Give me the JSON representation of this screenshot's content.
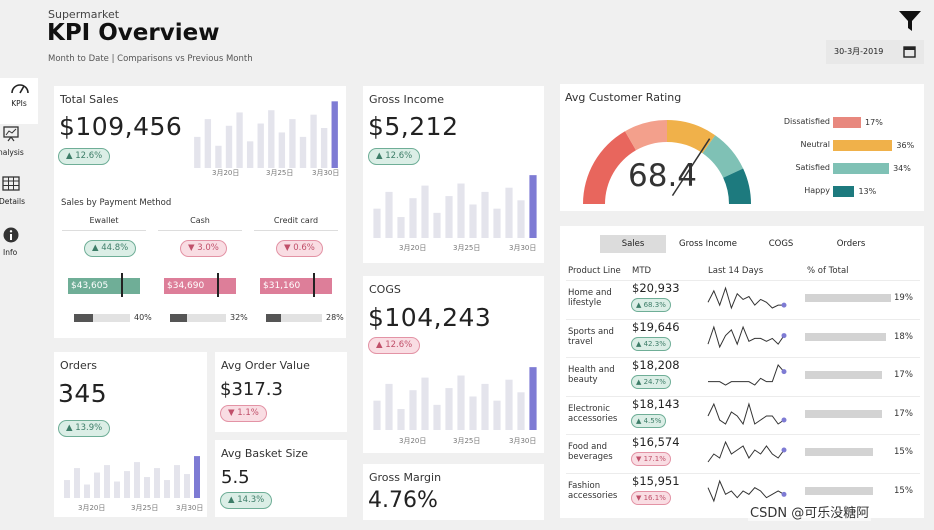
{
  "header": {
    "subtitle_top": "Supermarket",
    "title": "KPI Overview",
    "caption": "Month to Date | Comparisons vs Previous Month",
    "date": "30-3月-2019"
  },
  "nav": {
    "kpis": "KPIs",
    "analysis": "nalysis",
    "details": "Details",
    "info": "Info"
  },
  "colors": {
    "accent": "#7e7bd4",
    "bar": "#e4e4ec",
    "up": "#6fae97",
    "down": "#e393a5"
  },
  "total_sales": {
    "label": "Total Sales",
    "value": "$109,456",
    "change": "▲ 12.6%",
    "ticks": [
      "3月20日",
      "3月25日",
      "3月30日"
    ],
    "bars": [
      14,
      22,
      10,
      19,
      25,
      12,
      20,
      26,
      16,
      22,
      14,
      24,
      18,
      30
    ]
  },
  "payment": {
    "label": "Sales by Payment Method",
    "methods": [
      {
        "name": "Ewallet",
        "change": "▲ 44.8%",
        "dir": "up",
        "value": "$43,605",
        "share": "40%",
        "share_num": 40
      },
      {
        "name": "Cash",
        "change": "▼ 3.0%",
        "dir": "down",
        "value": "$34,690",
        "share": "32%",
        "share_num": 32
      },
      {
        "name": "Credit card",
        "change": "▼ 0.6%",
        "dir": "down",
        "value": "$31,160",
        "share": "28%",
        "share_num": 28
      }
    ]
  },
  "gross_income": {
    "label": "Gross Income",
    "value": "$5,212",
    "change": "▲ 12.6%",
    "ticks": [
      "3月20日",
      "3月25日",
      "3月30日"
    ],
    "bars": [
      14,
      22,
      10,
      19,
      25,
      12,
      20,
      26,
      16,
      22,
      14,
      24,
      18,
      30
    ]
  },
  "cogs": {
    "label": "COGS",
    "value": "$104,243",
    "change": "▲ 12.6%",
    "ticks": [
      "3月20日",
      "3月25日",
      "3月30日"
    ],
    "bars": [
      14,
      22,
      10,
      19,
      25,
      12,
      20,
      26,
      16,
      22,
      14,
      24,
      18,
      30
    ]
  },
  "orders": {
    "label": "Orders",
    "value": "345",
    "change": "▲ 13.9%",
    "ticks": [
      "3月20日",
      "3月25日",
      "3月30日"
    ],
    "bars": [
      12,
      20,
      9,
      17,
      22,
      11,
      18,
      24,
      14,
      20,
      12,
      22,
      16,
      28
    ]
  },
  "avg_order": {
    "label": "Avg Order Value",
    "value": "$317.3",
    "change": "▼ 1.1%"
  },
  "avg_basket": {
    "label": "Avg Basket Size",
    "value": "5.5",
    "change": "▲ 14.3%"
  },
  "gross_margin": {
    "label": "Gross Margin",
    "value": "4.76%"
  },
  "rating": {
    "label": "Avg Customer Rating",
    "value": "68.4",
    "value_num": 68.4,
    "legend": [
      {
        "name": "Dissatisfied",
        "pct": "17%",
        "num": 17,
        "color": "#e8887e"
      },
      {
        "name": "Neutral",
        "pct": "36%",
        "num": 36,
        "color": "#f0b14a"
      },
      {
        "name": "Satisfied",
        "pct": "34%",
        "num": 34,
        "color": "#7fc1b5"
      },
      {
        "name": "Happy",
        "pct": "13%",
        "num": 13,
        "color": "#1d7a7e"
      }
    ]
  },
  "product_table": {
    "tabs": [
      "Sales",
      "Gross Income",
      "COGS",
      "Orders"
    ],
    "headers": [
      "Product Line",
      "MTD",
      "Last 14 Days",
      "% of Total"
    ],
    "rows": [
      {
        "name": "Home and lifestyle",
        "mtd": "$20,933",
        "change": "▲ 68.3%",
        "dir": "up",
        "pct": "19%",
        "pct_num": 19,
        "spark": [
          4,
          8,
          3,
          9,
          2,
          7,
          5,
          6,
          3,
          5,
          4,
          2,
          3,
          3
        ]
      },
      {
        "name": "Sports and travel",
        "mtd": "$19,646",
        "change": "▲ 42.3%",
        "dir": "up",
        "pct": "18%",
        "pct_num": 18,
        "spark": [
          3,
          9,
          2,
          6,
          8,
          3,
          9,
          4,
          5,
          5,
          4,
          5,
          3,
          6
        ]
      },
      {
        "name": "Health and beauty",
        "mtd": "$18,208",
        "change": "▲ 24.7%",
        "dir": "up",
        "pct": "17%",
        "pct_num": 17,
        "spark": [
          3,
          3,
          3,
          2,
          3,
          3,
          3,
          3,
          2,
          4,
          3,
          3,
          8,
          6
        ]
      },
      {
        "name": "Electronic accessories",
        "mtd": "$18,143",
        "change": "▲ 4.5%",
        "dir": "up",
        "pct": "17%",
        "pct_num": 17,
        "spark": [
          5,
          8,
          4,
          3,
          6,
          5,
          3,
          8,
          3,
          4,
          5,
          5,
          3,
          4
        ]
      },
      {
        "name": "Food and beverages",
        "mtd": "$16,574",
        "change": "▼ 17.1%",
        "dir": "down",
        "pct": "15%",
        "pct_num": 15,
        "spark": [
          3,
          5,
          4,
          8,
          5,
          6,
          7,
          4,
          6,
          5,
          7,
          5,
          4,
          6
        ]
      },
      {
        "name": "Fashion accessories",
        "mtd": "$15,951",
        "change": "▼ 16.1%",
        "dir": "down",
        "pct": "15%",
        "pct_num": 15,
        "spark": [
          6,
          2,
          8,
          4,
          5,
          3,
          5,
          4,
          6,
          5,
          3,
          4,
          5,
          4
        ]
      }
    ]
  },
  "watermark": "CSDN @可乐没糖阿"
}
